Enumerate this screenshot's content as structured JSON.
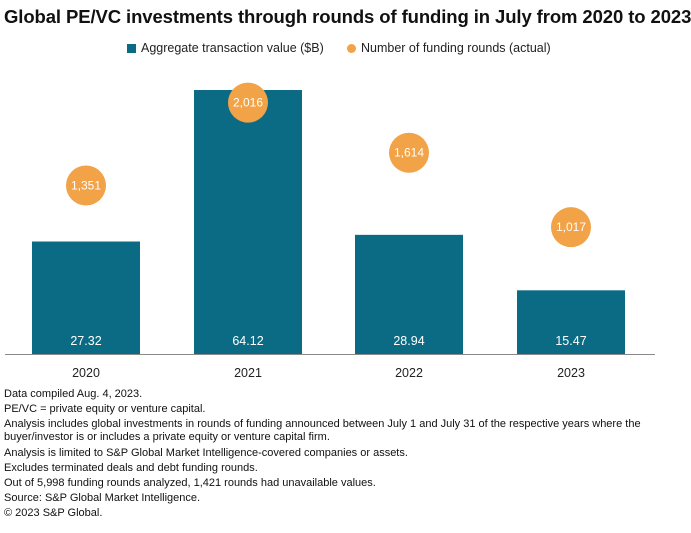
{
  "chart_data": {
    "type": "bar",
    "title": "Global PE/VC investments through rounds of funding in July from 2020  to 2023",
    "categories": [
      "2020",
      "2021",
      "2022",
      "2023"
    ],
    "series": [
      {
        "name": "Aggregate transaction value ($B)",
        "type": "bar",
        "values": [
          27.32,
          64.12,
          28.94,
          15.47
        ],
        "labels": [
          "27.32",
          "64.12",
          "28.94",
          "15.47"
        ],
        "color": "#0b6b84"
      },
      {
        "name": "Number of funding rounds (actual)",
        "type": "scatter",
        "values": [
          1351,
          2016,
          1614,
          1017
        ],
        "labels": [
          "1,351",
          "2,016",
          "1,614",
          "1,017"
        ],
        "color": "#f2a247"
      }
    ],
    "legend_position": "top",
    "grid": false
  },
  "notes": [
    "Data compiled Aug. 4, 2023.",
    "PE/VC = private equity or venture capital.",
    "Analysis includes global investments in rounds of funding announced between July 1 and July 31 of the respective years where the buyer/investor is or includes a private equity or venture capital firm.",
    "Analysis is limited to S&P Global Market Intelligence-covered companies or assets.",
    "Excludes terminated deals and debt funding rounds.",
    "Out of 5,998 funding rounds analyzed, 1,421 rounds had unavailable values.",
    "Source: S&P Global Market Intelligence.",
    "© 2023 S&P Global."
  ]
}
